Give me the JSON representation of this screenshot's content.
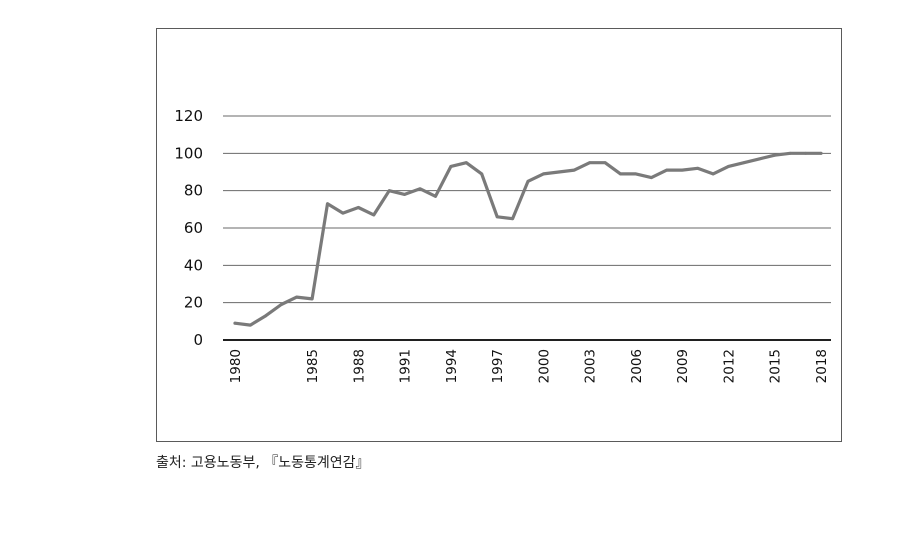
{
  "chart_data": {
    "type": "line",
    "title": "",
    "xlabel": "",
    "ylabel": "",
    "ylim": [
      0,
      120
    ],
    "y_ticks": [
      0,
      20,
      40,
      60,
      80,
      100,
      120
    ],
    "x_tick_labels": [
      "1980",
      "1985",
      "1988",
      "1991",
      "1994",
      "1997",
      "2000",
      "2003",
      "2006",
      "2009",
      "2012",
      "2015",
      "2018"
    ],
    "grid": "horizontal",
    "legend": "none",
    "series": [
      {
        "color": "#7a7a7a",
        "points": [
          {
            "x": 1980,
            "y": 9
          },
          {
            "x": 1981,
            "y": 8
          },
          {
            "x": 1982,
            "y": 13
          },
          {
            "x": 1983,
            "y": 19
          },
          {
            "x": 1984,
            "y": 23
          },
          {
            "x": 1985,
            "y": 22
          },
          {
            "x": 1986,
            "y": 73
          },
          {
            "x": 1987,
            "y": 68
          },
          {
            "x": 1988,
            "y": 71
          },
          {
            "x": 1989,
            "y": 67
          },
          {
            "x": 1990,
            "y": 80
          },
          {
            "x": 1991,
            "y": 78
          },
          {
            "x": 1992,
            "y": 81
          },
          {
            "x": 1993,
            "y": 77
          },
          {
            "x": 1994,
            "y": 93
          },
          {
            "x": 1995,
            "y": 95
          },
          {
            "x": 1996,
            "y": 89
          },
          {
            "x": 1997,
            "y": 66
          },
          {
            "x": 1998,
            "y": 65
          },
          {
            "x": 1999,
            "y": 85
          },
          {
            "x": 2000,
            "y": 89
          },
          {
            "x": 2001,
            "y": 90
          },
          {
            "x": 2002,
            "y": 91
          },
          {
            "x": 2003,
            "y": 95
          },
          {
            "x": 2004,
            "y": 95
          },
          {
            "x": 2005,
            "y": 89
          },
          {
            "x": 2006,
            "y": 89
          },
          {
            "x": 2007,
            "y": 87
          },
          {
            "x": 2008,
            "y": 91
          },
          {
            "x": 2009,
            "y": 91
          },
          {
            "x": 2010,
            "y": 92
          },
          {
            "x": 2011,
            "y": 89
          },
          {
            "x": 2012,
            "y": 93
          },
          {
            "x": 2013,
            "y": 95
          },
          {
            "x": 2014,
            "y": 97
          },
          {
            "x": 2015,
            "y": 99
          },
          {
            "x": 2016,
            "y": 100
          },
          {
            "x": 2017,
            "y": 100
          },
          {
            "x": 2018,
            "y": 100
          }
        ]
      }
    ]
  },
  "source_note": "출처: 고용노동부, 『노동통계연감』"
}
